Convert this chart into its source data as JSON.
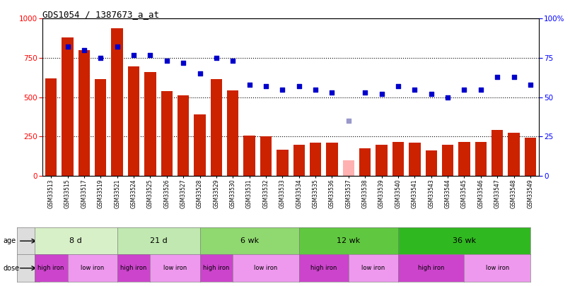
{
  "title": "GDS1054 / 1387673_a_at",
  "samples": [
    "GSM33513",
    "GSM33515",
    "GSM33517",
    "GSM33519",
    "GSM33521",
    "GSM33524",
    "GSM33525",
    "GSM33526",
    "GSM33527",
    "GSM33528",
    "GSM33529",
    "GSM33530",
    "GSM33531",
    "GSM33532",
    "GSM33533",
    "GSM33534",
    "GSM33535",
    "GSM33536",
    "GSM33537",
    "GSM33538",
    "GSM33539",
    "GSM33540",
    "GSM33541",
    "GSM33543",
    "GSM33544",
    "GSM33545",
    "GSM33546",
    "GSM33547",
    "GSM33548",
    "GSM33549"
  ],
  "bar_values": [
    620,
    880,
    800,
    615,
    940,
    695,
    660,
    540,
    510,
    390,
    615,
    545,
    255,
    250,
    165,
    200,
    210,
    210,
    100,
    175,
    200,
    215,
    210,
    160,
    200,
    215,
    215,
    290,
    275,
    245
  ],
  "absent_bar_index": 18,
  "absent_bar_color": "#ffb0b0",
  "rank_values": [
    null,
    82,
    80,
    75,
    82,
    77,
    77,
    73,
    72,
    65,
    75,
    73,
    58,
    57,
    55,
    57,
    55,
    53,
    35,
    53,
    52,
    57,
    55,
    52,
    50,
    55,
    55,
    63,
    63,
    58
  ],
  "absent_rank_index": 18,
  "absent_rank_value": 35,
  "absent_rank_color": "#9999cc",
  "age_groups": [
    {
      "label": "8 d",
      "start": 0,
      "end": 5,
      "color": "#d8f0c8"
    },
    {
      "label": "21 d",
      "start": 5,
      "end": 10,
      "color": "#c0e8b0"
    },
    {
      "label": "6 wk",
      "start": 10,
      "end": 16,
      "color": "#90d870"
    },
    {
      "label": "12 wk",
      "start": 16,
      "end": 22,
      "color": "#60c840"
    },
    {
      "label": "36 wk",
      "start": 22,
      "end": 30,
      "color": "#30b820"
    }
  ],
  "dose_groups": [
    {
      "label": "high iron",
      "start": 0,
      "end": 2,
      "color": "#cc44cc"
    },
    {
      "label": "low iron",
      "start": 2,
      "end": 5,
      "color": "#ee99ee"
    },
    {
      "label": "high iron",
      "start": 5,
      "end": 7,
      "color": "#cc44cc"
    },
    {
      "label": "low iron",
      "start": 7,
      "end": 10,
      "color": "#ee99ee"
    },
    {
      "label": "high iron",
      "start": 10,
      "end": 12,
      "color": "#cc44cc"
    },
    {
      "label": "low iron",
      "start": 12,
      "end": 16,
      "color": "#ee99ee"
    },
    {
      "label": "high iron",
      "start": 16,
      "end": 19,
      "color": "#cc44cc"
    },
    {
      "label": "low iron",
      "start": 19,
      "end": 22,
      "color": "#ee99ee"
    },
    {
      "label": "high iron",
      "start": 22,
      "end": 26,
      "color": "#cc44cc"
    },
    {
      "label": "low iron",
      "start": 26,
      "end": 30,
      "color": "#ee99ee"
    }
  ],
  "bar_color": "#cc2200",
  "rank_color": "#0000cc",
  "ylim_left": [
    0,
    1000
  ],
  "ylim_right": [
    0,
    100
  ],
  "yticks_left": [
    0,
    250,
    500,
    750,
    1000
  ],
  "yticks_right": [
    0,
    25,
    50,
    75,
    100
  ],
  "bg_color": "#ffffff"
}
